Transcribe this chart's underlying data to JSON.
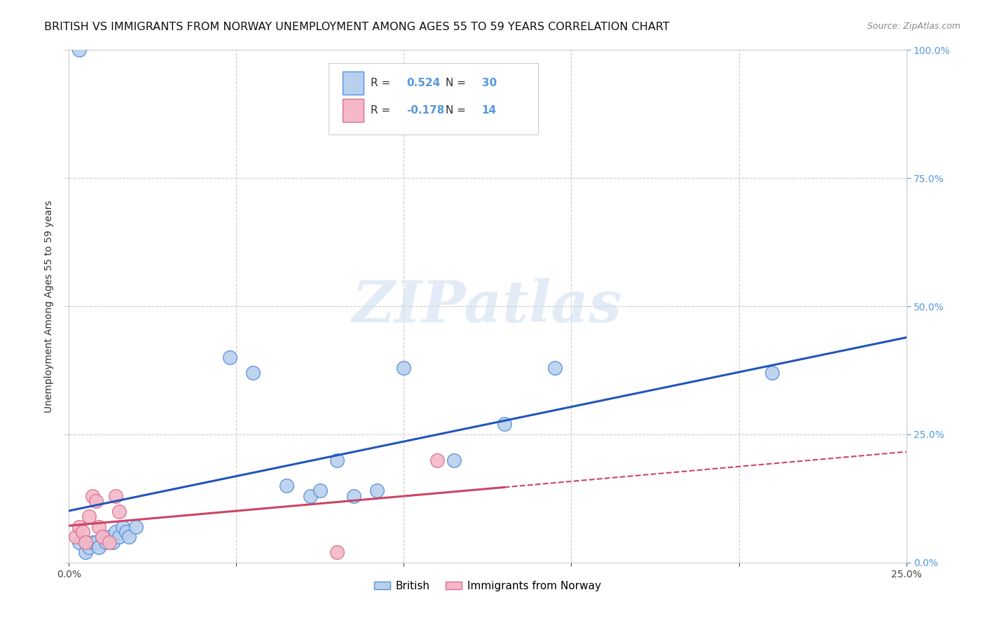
{
  "title": "BRITISH VS IMMIGRANTS FROM NORWAY UNEMPLOYMENT AMONG AGES 55 TO 59 YEARS CORRELATION CHART",
  "source": "Source: ZipAtlas.com",
  "ylabel": "Unemployment Among Ages 55 to 59 years",
  "watermark": "ZIPatlas",
  "british_R": 0.524,
  "british_N": 30,
  "norway_R": -0.178,
  "norway_N": 14,
  "british_color": "#b8d0ee",
  "british_edge_color": "#5590d8",
  "british_line_color": "#2255bb",
  "norway_color": "#f4b8c8",
  "norway_edge_color": "#d87090",
  "norway_line_color": "#cc4466",
  "xlim": [
    0.0,
    0.25
  ],
  "ylim": [
    0.0,
    1.0
  ],
  "right_tick_color": "#5599dd",
  "background_color": "#ffffff",
  "grid_color": "#cccccc",
  "title_fontsize": 11.5,
  "source_fontsize": 9,
  "tick_fontsize": 10,
  "ylabel_fontsize": 10,
  "british_x": [
    0.003,
    0.005,
    0.006,
    0.007,
    0.008,
    0.009,
    0.01,
    0.011,
    0.012,
    0.013,
    0.014,
    0.015,
    0.016,
    0.017,
    0.018,
    0.02,
    0.048,
    0.055,
    0.065,
    0.072,
    0.075,
    0.08,
    0.085,
    0.092,
    0.1,
    0.115,
    0.13,
    0.145,
    0.21,
    0.003
  ],
  "british_y": [
    0.04,
    0.02,
    0.03,
    0.04,
    0.04,
    0.03,
    0.05,
    0.04,
    0.05,
    0.04,
    0.06,
    0.05,
    0.07,
    0.06,
    0.05,
    0.07,
    0.4,
    0.37,
    0.15,
    0.13,
    0.14,
    0.2,
    0.13,
    0.14,
    0.38,
    0.2,
    0.27,
    0.38,
    0.37,
    1.0
  ],
  "norway_x": [
    0.002,
    0.003,
    0.004,
    0.005,
    0.006,
    0.007,
    0.008,
    0.009,
    0.01,
    0.012,
    0.014,
    0.015,
    0.08,
    0.11
  ],
  "norway_y": [
    0.05,
    0.07,
    0.06,
    0.04,
    0.09,
    0.13,
    0.12,
    0.07,
    0.05,
    0.04,
    0.13,
    0.1,
    0.02,
    0.2
  ],
  "legend_british_label": "British",
  "legend_norway_label": "Immigrants from Norway"
}
